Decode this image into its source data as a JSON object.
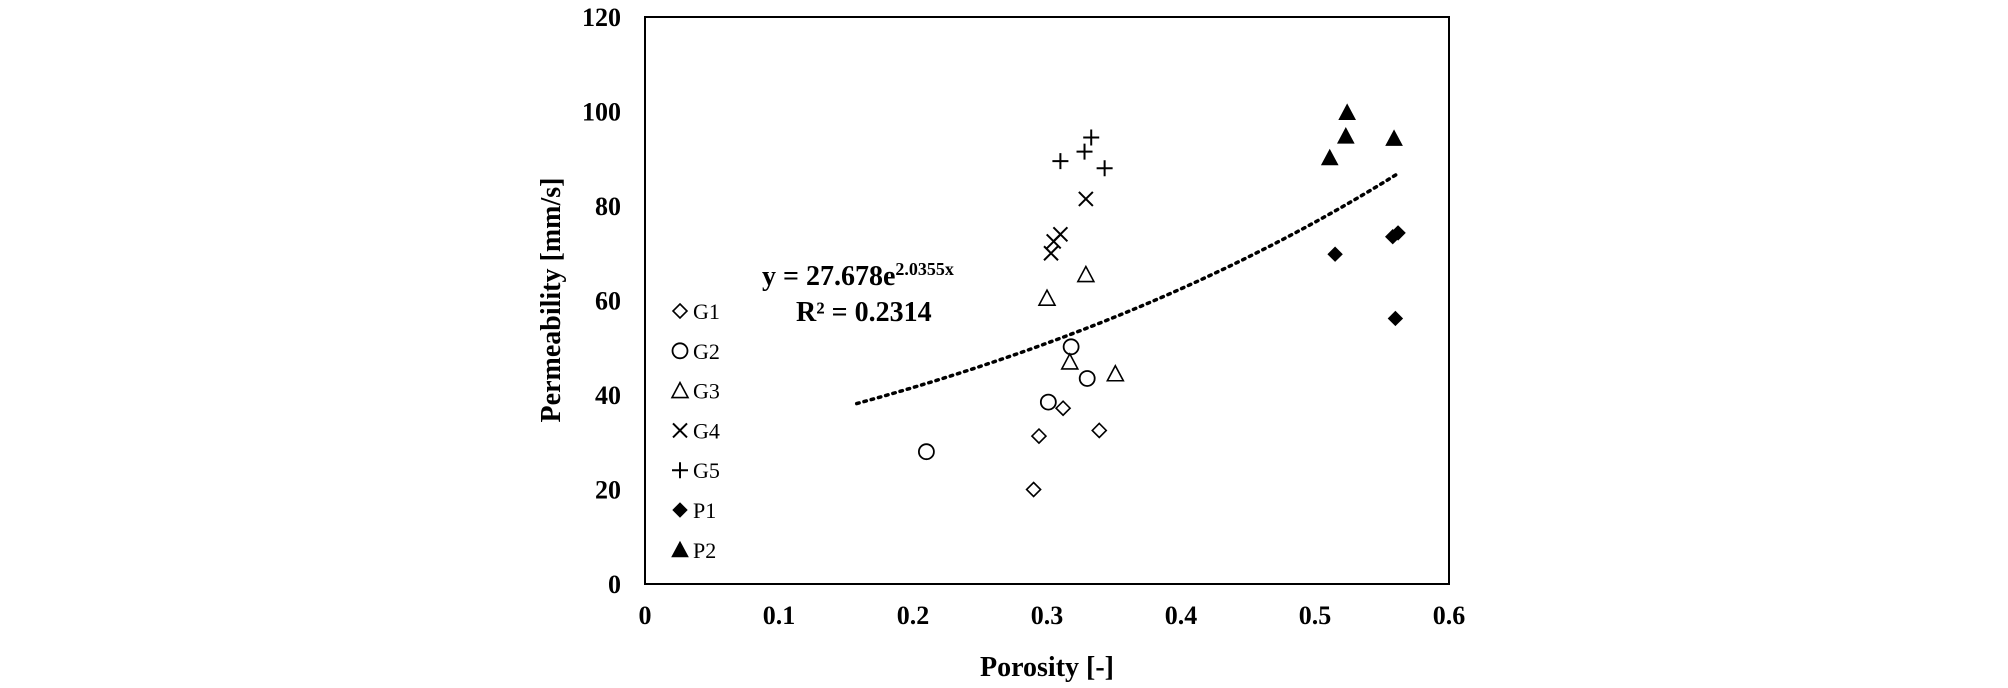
{
  "chart_data": {
    "type": "scatter",
    "title": "",
    "xlabel": "Porosity  [-]",
    "ylabel": "Permeability  [mm/s]",
    "xlim": [
      0,
      0.6
    ],
    "ylim": [
      0,
      120
    ],
    "x_ticks": [
      0,
      0.1,
      0.2,
      0.3,
      0.4,
      0.5,
      0.6
    ],
    "x_tick_labels": [
      "0",
      "0.1",
      "0.2",
      "0.3",
      "0.4",
      "0.5",
      "0.6"
    ],
    "y_ticks": [
      0,
      20,
      40,
      60,
      80,
      100,
      120
    ],
    "y_tick_labels": [
      "0",
      "20",
      "40",
      "60",
      "80",
      "100",
      "120"
    ],
    "grid": false,
    "legend_position": "left",
    "series": [
      {
        "name": "G1",
        "marker": "diamond-open",
        "points": [
          [
            0.29,
            20
          ],
          [
            0.294,
            31.3
          ],
          [
            0.312,
            37.2
          ],
          [
            0.339,
            32.5
          ]
        ]
      },
      {
        "name": "G2",
        "marker": "circle-open",
        "points": [
          [
            0.21,
            28
          ],
          [
            0.301,
            38.5
          ],
          [
            0.318,
            50.2
          ],
          [
            0.33,
            43.5
          ]
        ]
      },
      {
        "name": "G3",
        "marker": "triangle-open",
        "points": [
          [
            0.3,
            60.5
          ],
          [
            0.317,
            47
          ],
          [
            0.329,
            65.5
          ],
          [
            0.351,
            44.5
          ]
        ]
      },
      {
        "name": "G4",
        "marker": "x",
        "points": [
          [
            0.303,
            70
          ],
          [
            0.305,
            72.5
          ],
          [
            0.31,
            74
          ],
          [
            0.329,
            81.5
          ]
        ]
      },
      {
        "name": "G5",
        "marker": "plus",
        "points": [
          [
            0.31,
            89.5
          ],
          [
            0.328,
            91.5
          ],
          [
            0.333,
            94.5
          ],
          [
            0.343,
            88
          ]
        ]
      },
      {
        "name": "P1",
        "marker": "diamond-filled",
        "points": [
          [
            0.515,
            69.8
          ],
          [
            0.558,
            73.5
          ],
          [
            0.56,
            56.2
          ],
          [
            0.562,
            74.3
          ]
        ]
      },
      {
        "name": "P2",
        "marker": "triangle-filled",
        "points": [
          [
            0.511,
            90.2
          ],
          [
            0.523,
            94.8
          ],
          [
            0.524,
            99.8
          ],
          [
            0.559,
            94.3
          ]
        ]
      }
    ],
    "trendline": {
      "type": "exponential",
      "a": 27.678,
      "b": 2.0355,
      "x_range": [
        0.158,
        0.562
      ],
      "style": "dotted",
      "equation_prefix": "y = 27.678e",
      "equation_exponent": "2.0355x",
      "r2_label": "R² = 0.2314"
    },
    "colors": {
      "markers": "#000000",
      "axes": "#000000"
    }
  }
}
